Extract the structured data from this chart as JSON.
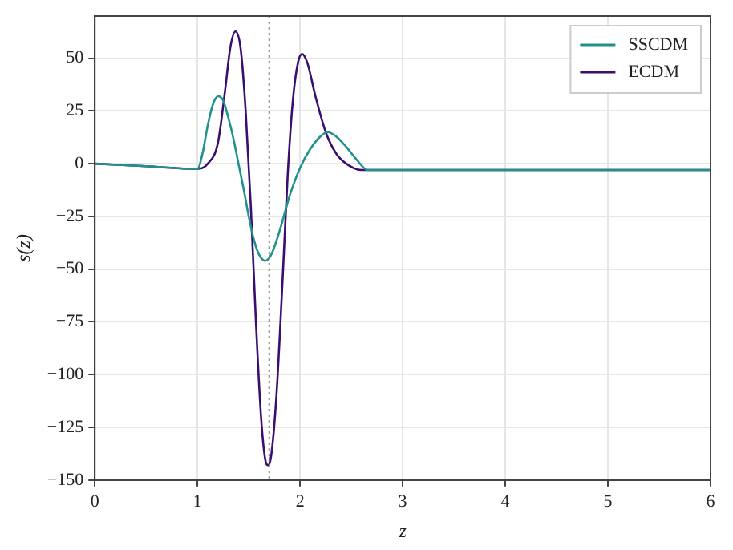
{
  "chart_data": {
    "type": "line",
    "xlabel": "z",
    "ylabel": "s(z)",
    "xlim": [
      0,
      6
    ],
    "xticks": [
      0,
      1,
      2,
      3,
      4,
      5,
      6
    ],
    "ylim": [
      -150,
      70
    ],
    "yticks": [
      -150,
      -125,
      -100,
      -75,
      -50,
      -25,
      0,
      25,
      50
    ],
    "grid": true,
    "legend": "top right",
    "marker": "none",
    "line_style": "solid",
    "ref_lines": [
      {
        "axis": "x",
        "value": 1.7,
        "color": "#808080",
        "line_style": "dotted"
      }
    ],
    "series": [
      {
        "name": "SSCDM",
        "color": "#21918c",
        "x": [
          0,
          0.5,
          1.0,
          1.05,
          1.1,
          1.15,
          1.2,
          1.25,
          1.3,
          1.35,
          1.4,
          1.45,
          1.5,
          1.55,
          1.6,
          1.66,
          1.72,
          1.8,
          1.9,
          2.0,
          2.1,
          2.2,
          2.27,
          2.35,
          2.45,
          2.55,
          2.66,
          3,
          4,
          5,
          6
        ],
        "values": [
          0,
          -1.2,
          -2.5,
          5,
          18,
          28,
          32,
          30,
          22,
          12,
          0,
          -12,
          -25,
          -36,
          -43,
          -46,
          -43,
          -32,
          -15,
          -2,
          7,
          13,
          15,
          13,
          8,
          2,
          -3,
          -3,
          -3,
          -3,
          -3
        ]
      },
      {
        "name": "ECDM",
        "color": "#3b0f70",
        "x": [
          0,
          0.5,
          1.0,
          1.1,
          1.2,
          1.27,
          1.32,
          1.37,
          1.42,
          1.47,
          1.52,
          1.57,
          1.62,
          1.66,
          1.69,
          1.72,
          1.77,
          1.83,
          1.88,
          1.93,
          1.98,
          2.02,
          2.07,
          2.15,
          2.25,
          2.35,
          2.45,
          2.6,
          6
        ],
        "values": [
          0,
          -1.2,
          -2.5,
          0,
          10,
          35,
          55,
          62.7,
          55,
          25,
          -20,
          -75,
          -120,
          -140,
          -143,
          -138,
          -110,
          -55,
          -5,
          30,
          48,
          52,
          48,
          32,
          15,
          5,
          0,
          -3,
          -3
        ]
      }
    ]
  }
}
